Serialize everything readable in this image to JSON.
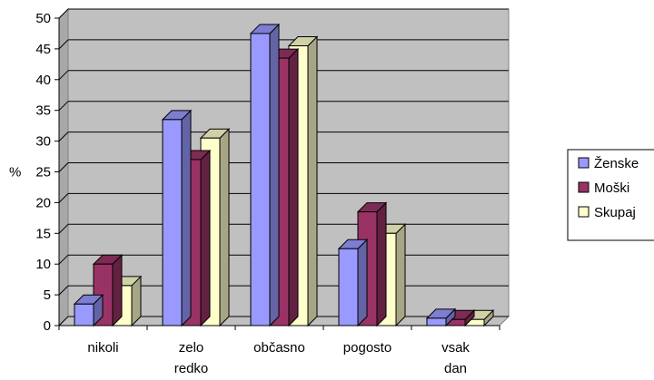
{
  "chart_data": {
    "type": "bar",
    "style": "3d-clustered-column",
    "categories": [
      [
        "nikoli"
      ],
      [
        "zelo",
        "redko"
      ],
      [
        "občasno"
      ],
      [
        "pogosto"
      ],
      [
        "vsak",
        "dan"
      ]
    ],
    "series": [
      {
        "name": "Ženske",
        "values": [
          3.5,
          33.5,
          47.5,
          12.5,
          1.2
        ],
        "color": "#9999ff"
      },
      {
        "name": "Moški",
        "values": [
          10,
          27,
          43.5,
          18.5,
          1
        ],
        "color": "#993366"
      },
      {
        "name": "Skupaj",
        "values": [
          6.5,
          30.5,
          45.5,
          15,
          1
        ],
        "color": "#ffffcc"
      }
    ],
    "ylabel": "%",
    "ylim": [
      0,
      50
    ],
    "yticks": [
      0,
      5,
      10,
      15,
      20,
      25,
      30,
      35,
      40,
      45,
      50
    ],
    "grid": true,
    "plot_background": "#c0c0c0",
    "legend_position": "right"
  }
}
